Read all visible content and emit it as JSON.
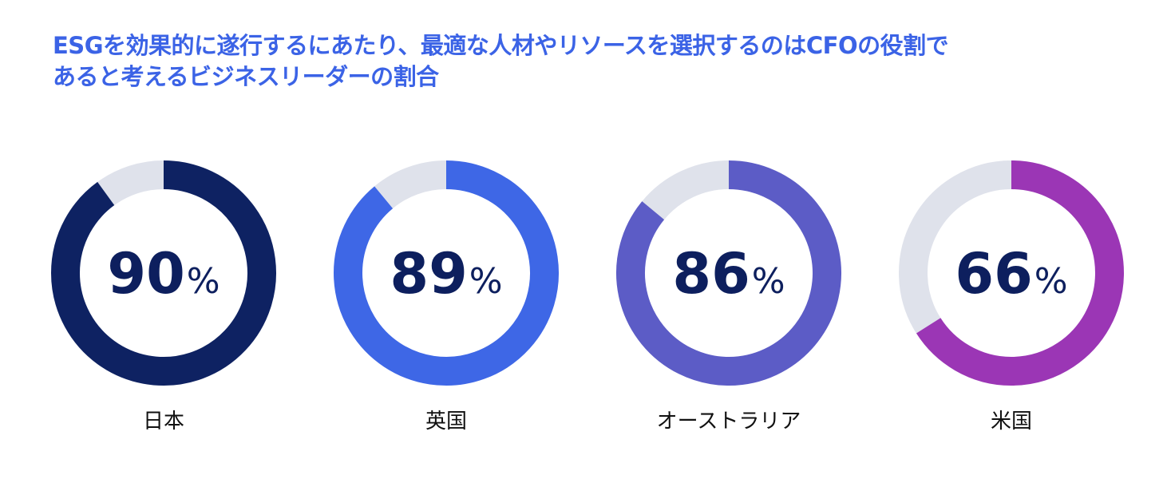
{
  "title_lines": [
    "ESGを効果的に遂行するにあたり、最適な人材やリソースを選択するのはCFOの役割で",
    "あると考えるビジネスリーダーの割合"
  ],
  "colors": {
    "title": "#3b63e6",
    "track": "#dfe2eb",
    "value_text": "#0d1f5e",
    "label_text": "#111111"
  },
  "chart_data": {
    "type": "pie",
    "variant": "donut",
    "unit": "%",
    "categories": [
      "日本",
      "英国",
      "オーストラリア",
      "米国"
    ],
    "values": [
      90,
      89,
      86,
      66
    ],
    "series_colors": [
      "#0e2262",
      "#3e67e6",
      "#5c5cc6",
      "#9b36b5"
    ],
    "max": 100
  }
}
